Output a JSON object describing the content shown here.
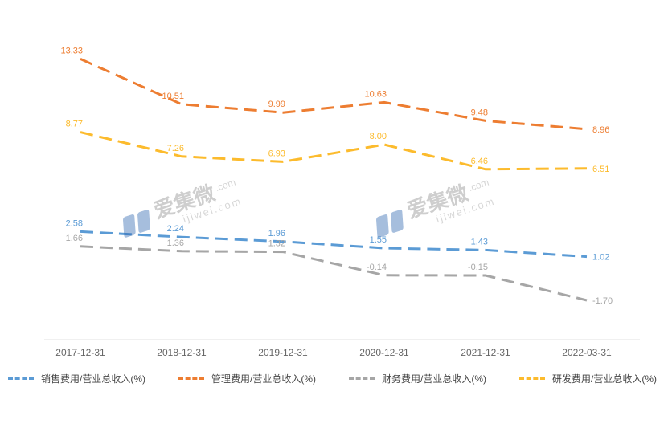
{
  "chart_data": {
    "type": "line",
    "title": "",
    "x": [
      "2017-12-31",
      "2018-12-31",
      "2019-12-31",
      "2020-12-31",
      "2021-12-31",
      "2022-03-31"
    ],
    "series": [
      {
        "name": "销售费用/营业总收入(%)",
        "color": "#5B9BD5",
        "values": [
          2.58,
          2.24,
          1.96,
          1.55,
          1.43,
          1.02
        ]
      },
      {
        "name": "管理费用/营业总收入(%)",
        "color": "#ED7D31",
        "values": [
          13.33,
          10.51,
          9.99,
          10.63,
          9.48,
          8.96
        ]
      },
      {
        "name": "财务费用/营业总收入(%)",
        "color": "#A6A6A6",
        "values": [
          1.66,
          1.36,
          1.32,
          -0.14,
          -0.15,
          -1.7
        ]
      },
      {
        "name": "研发费用/营业总收入(%)",
        "color": "#FCBB2D",
        "values": [
          8.77,
          7.26,
          6.93,
          8.0,
          6.46,
          6.51
        ]
      }
    ],
    "ylim": [
      -3,
      15
    ],
    "line_style": "dashed",
    "grid": false,
    "legend_position": "bottom",
    "axis_line_color": "#e2e2e2"
  },
  "watermark": {
    "brand": "爱集微",
    "suffix": ".com",
    "domain": "ijiwei.com"
  }
}
